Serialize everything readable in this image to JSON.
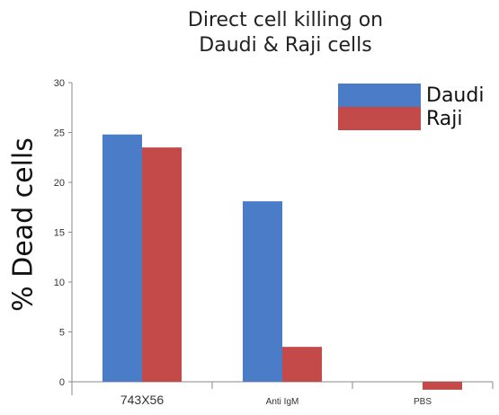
{
  "chart_data": {
    "type": "bar",
    "title": "Direct cell killing on",
    "subtitle": "Daudi & Raji cells",
    "xlabel": "",
    "ylabel": "% Dead cells",
    "categories": [
      "743X56",
      "Anti IgM",
      "PBS"
    ],
    "series": [
      {
        "name": "Daudi",
        "color": "#4a7cc7",
        "values": [
          24.8,
          18.1,
          0.0
        ]
      },
      {
        "name": "Raji",
        "color": "#c44a4a",
        "values": [
          23.5,
          3.5,
          -0.8
        ]
      }
    ],
    "ylim": [
      -1,
      30
    ],
    "yticks": [
      0,
      5,
      10,
      15,
      20,
      25,
      30
    ],
    "grid": false,
    "legend_position": "top-right"
  }
}
